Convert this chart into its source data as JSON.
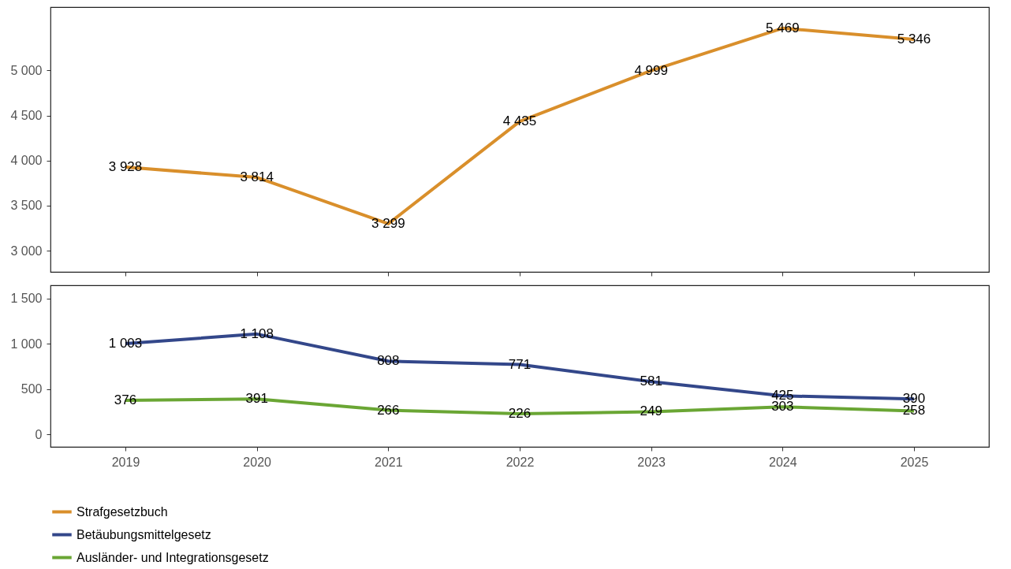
{
  "chart_data": [
    {
      "type": "line",
      "categories": [
        "2019",
        "2020",
        "2021",
        "2022",
        "2023",
        "2024",
        "2025"
      ],
      "ylim": [
        2765,
        5704
      ],
      "yticks": [
        3000,
        3500,
        4000,
        4500,
        5000
      ],
      "tick_labels": "y",
      "data_labels": true,
      "grid": false,
      "legend": "bottom",
      "series": [
        {
          "name": "Strafgesetzbuch",
          "color": "#d98f2b",
          "values": [
            3928,
            3814,
            3299,
            4435,
            4999,
            5469,
            5346
          ]
        }
      ]
    },
    {
      "type": "line",
      "categories": [
        "2019",
        "2020",
        "2021",
        "2022",
        "2023",
        "2024",
        "2025"
      ],
      "ylim": [
        -139,
        1647
      ],
      "yticks": [
        0,
        500,
        1000,
        1500
      ],
      "data_labels": true,
      "grid": false,
      "legend": "bottom",
      "series": [
        {
          "name": "Betäubungsmittelgesetz",
          "color": "#33478a",
          "values": [
            1003,
            1108,
            808,
            771,
            581,
            425,
            390
          ]
        },
        {
          "name": "Ausländer- und Integrationsgesetz",
          "color": "#6aa634",
          "values": [
            376,
            391,
            266,
            226,
            249,
            303,
            258
          ]
        }
      ]
    }
  ]
}
